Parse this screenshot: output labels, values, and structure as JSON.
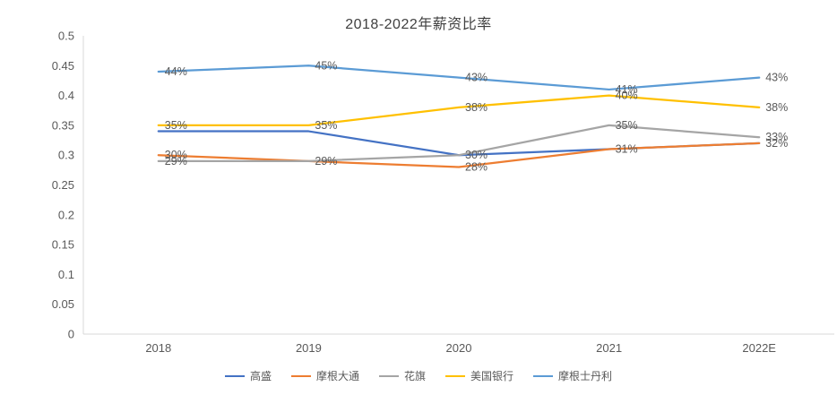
{
  "chart_data": {
    "type": "line",
    "title": "2018-2022年薪资比率",
    "categories": [
      "2018",
      "2019",
      "2020",
      "2021",
      "2022E"
    ],
    "y_axis": {
      "min": 0,
      "max": 0.5,
      "step": 0.05,
      "tick_labels": [
        "0",
        "0.05",
        "0.1",
        "0.15",
        "0.2",
        "0.25",
        "0.3",
        "0.35",
        "0.4",
        "0.45",
        "0.5"
      ]
    },
    "grid": false,
    "legend_position": "bottom",
    "text_color": "#595959",
    "axis_color": "#d9d9d9",
    "series": [
      {
        "name": "高盛",
        "color": "#4472c4",
        "values": [
          0.34,
          0.34,
          0.3,
          0.31,
          0.32
        ],
        "labels": [
          null,
          null,
          "30%",
          "31%",
          "32%"
        ]
      },
      {
        "name": "摩根大通",
        "color": "#ed7d31",
        "values": [
          0.3,
          0.29,
          0.28,
          0.31,
          0.32
        ],
        "labels": [
          "30%",
          "29%",
          "28%",
          null,
          null
        ]
      },
      {
        "name": "花旗",
        "color": "#a5a5a5",
        "values": [
          0.29,
          0.29,
          0.3,
          0.35,
          0.33
        ],
        "labels": [
          "29%",
          null,
          null,
          "35%",
          "33%"
        ]
      },
      {
        "name": "美国银行",
        "color": "#ffc000",
        "values": [
          0.35,
          0.35,
          0.38,
          0.4,
          0.38
        ],
        "labels": [
          "35%",
          "35%",
          "38%",
          "40%",
          "38%"
        ]
      },
      {
        "name": "摩根士丹利",
        "color": "#5b9bd5",
        "values": [
          0.44,
          0.45,
          0.43,
          0.41,
          0.43
        ],
        "labels": [
          "44%",
          "45%",
          "43%",
          "41%",
          "43%"
        ]
      }
    ]
  }
}
